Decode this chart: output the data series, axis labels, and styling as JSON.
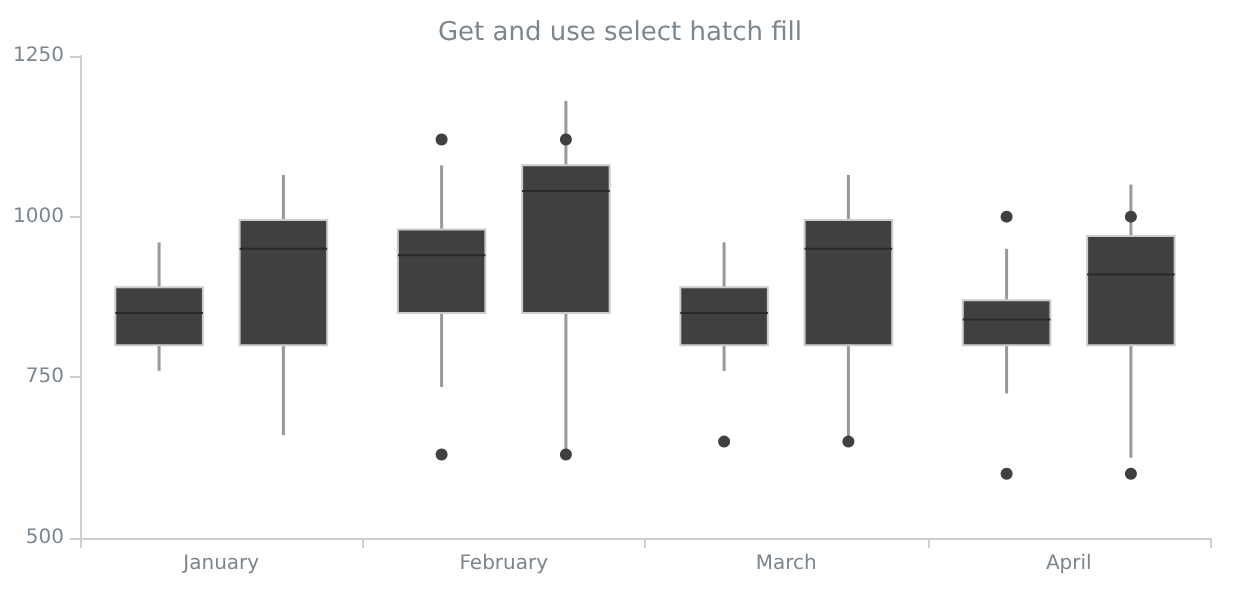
{
  "chart_data": {
    "type": "box",
    "title": "Get and use select hatch fill",
    "categories": [
      "January",
      "February",
      "March",
      "April"
    ],
    "series": [
      {
        "color": "#404040",
        "boxes": [
          {
            "low": 760,
            "q1": 800,
            "median": 850,
            "q3": 890,
            "high": 960
          },
          {
            "low": 735,
            "q1": 850,
            "median": 940,
            "q3": 980,
            "high": 1080,
            "outliers": [
              1120,
              630
            ]
          },
          {
            "low": 760,
            "q1": 800,
            "median": 850,
            "q3": 890,
            "high": 960,
            "outliers": [
              650
            ]
          },
          {
            "low": 725,
            "q1": 800,
            "median": 840,
            "q3": 870,
            "high": 950,
            "outliers": [
              1000,
              600
            ]
          }
        ]
      },
      {
        "color": "#404040",
        "boxes": [
          {
            "low": 660,
            "q1": 800,
            "median": 950,
            "q3": 995,
            "high": 1065
          },
          {
            "low": 630,
            "q1": 850,
            "median": 1040,
            "q3": 1080,
            "high": 1180,
            "outliers": [
              1120,
              630
            ]
          },
          {
            "low": 650,
            "q1": 800,
            "median": 950,
            "q3": 995,
            "high": 1065,
            "outliers": [
              650
            ]
          },
          {
            "low": 625,
            "q1": 800,
            "median": 910,
            "q3": 970,
            "high": 1050,
            "outliers": [
              1000,
              600
            ]
          }
        ]
      }
    ],
    "ylim": [
      500,
      1250
    ],
    "yticks": [
      500,
      750,
      1000,
      1250
    ],
    "grid": false
  }
}
